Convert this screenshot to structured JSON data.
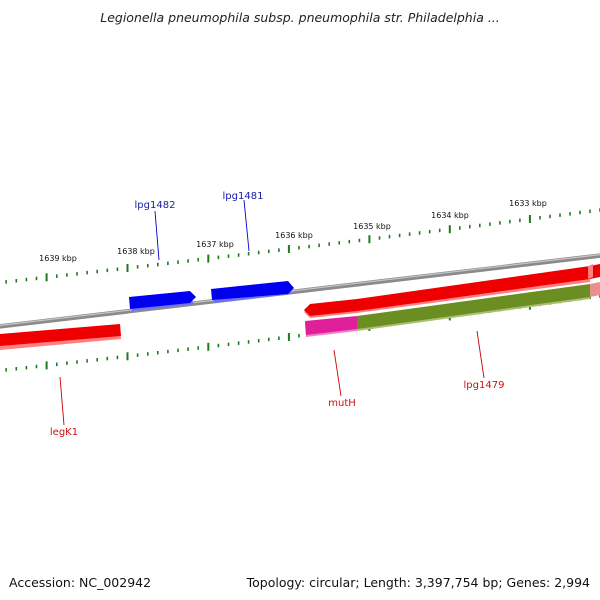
{
  "title": "Legionella pneumophila subsp. pneumophila str. Philadelphia ...",
  "footer": {
    "accession": "Accession: NC_002942",
    "summary": "Topology: circular; Length: 3,397,754 bp; Genes: 2,994"
  },
  "ruler": {
    "tick_labels": [
      "1639 kbp",
      "1638 kbp",
      "1637 kbp",
      "1636 kbp",
      "1635 kbp",
      "1634 kbp",
      "1633 kbp"
    ]
  },
  "genes": {
    "blue": [
      "lpg1482",
      "lpg1481"
    ],
    "red": [
      "legK1",
      "mutH",
      "lpg1479"
    ]
  },
  "colors": {
    "backbone": "#808080",
    "ticks": "#1e7a1e",
    "forward_gene": "#0000ee",
    "reverse_gene": "#ee0000",
    "mutH_feature": "#e0209a",
    "lpg1479_feature": "#6b8e23",
    "blue_label": "#1a1aaa",
    "red_label": "#cc1111"
  }
}
